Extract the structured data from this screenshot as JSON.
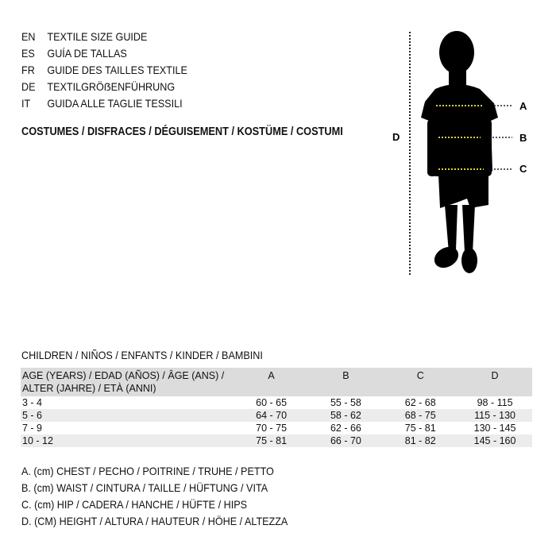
{
  "titles": [
    {
      "code": "EN",
      "text": "TEXTILE SIZE GUIDE"
    },
    {
      "code": "ES",
      "text": "GUÍA DE TALLAS"
    },
    {
      "code": "FR",
      "text": "GUIDE DES TAILLES TEXTILE"
    },
    {
      "code": "DE",
      "text": "TEXTILGRÖẞENFÜHRUNG"
    },
    {
      "code": "IT",
      "text": "GUIDA ALLE TAGLIE TESSILI"
    }
  ],
  "category": "COSTUMES / DISFRACES / DÉGUISEMENT / KOSTÜME / COSTUMI",
  "figure": {
    "labels": {
      "a": "A",
      "b": "B",
      "c": "C",
      "d": "D"
    },
    "measure_color": "#e8d200"
  },
  "table": {
    "caption": "CHILDREN / NIÑOS / ENFANTS / KINDER / BAMBINI",
    "header": [
      "AGE (YEARS) / EDAD (AÑOS) / ÂGE (ANS) / ALTER (JAHRE) / ETÀ (ANNI)",
      "A",
      "B",
      "C",
      "D"
    ],
    "rows": [
      [
        "3 - 4",
        "60 - 65",
        "55 - 58",
        "62 - 68",
        "98 - 115"
      ],
      [
        "5 - 6",
        "64 - 70",
        "58 - 62",
        "68 - 75",
        "115 - 130"
      ],
      [
        "7 - 9",
        "70 - 75",
        "62 - 66",
        "75 - 81",
        "130 - 145"
      ],
      [
        "10 - 12",
        "75 - 81",
        "66 - 70",
        "81 - 82",
        "145 - 160"
      ]
    ]
  },
  "legend": [
    "A. (cm) CHEST / PECHO / POITRINE / TRUHE / PETTO",
    "B. (cm) WAIST / CINTURA / TAILLE / HÜFTUNG / VITA",
    "C. (cm) HIP / CADERA / HANCHE / HÜFTE / HIPS",
    "D. (CM) HEIGHT / ALTURA / HAUTEUR / HÖHE / ALTEZZA"
  ]
}
